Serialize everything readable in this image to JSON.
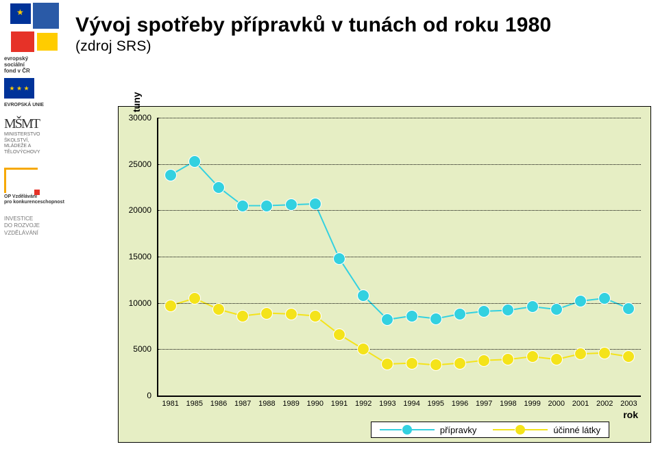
{
  "heading": {
    "title": "Vývoj spotřeby přípravků v tunách od roku 1980",
    "subtitle": "(zdroj SRS)"
  },
  "sidebar": {
    "esf_line1": "evropský",
    "esf_line2": "sociální",
    "esf_line3": "fond v ČR",
    "eu_caption": "EVROPSKÁ UNIE",
    "msmt_logo": "MŠMT",
    "msmt_line1": "MINISTERSTVO ŠKOLSTVÍ,",
    "msmt_line2": "MLÁDEŽE A TĚLOVÝCHOVY",
    "op_line1": "OP Vzdělávání",
    "op_line2": "pro konkurenceschopnost",
    "invest_line1": "INVESTICE",
    "invest_line2": "DO ROZVOJE",
    "invest_line3": "VZDĚLÁVÁNÍ"
  },
  "chart": {
    "type": "line",
    "background_color": "#e6eec4",
    "plot_border_color": "#000000",
    "grid_color": "#000000",
    "grid_style": "dotted",
    "ylabel": "tuny",
    "xlabel": "rok",
    "label_fontsize": 14,
    "tick_fontsize": 12,
    "xtick_fontsize": 11,
    "ylim": [
      0,
      30000
    ],
    "yticks": [
      0,
      5000,
      10000,
      15000,
      20000,
      25000,
      30000
    ],
    "xcategories": [
      "1981",
      "1985",
      "1986",
      "1987",
      "1988",
      "1989",
      "1990",
      "1991",
      "1992",
      "1993",
      "1994",
      "1995",
      "1996",
      "1997",
      "1998",
      "1999",
      "2000",
      "2001",
      "2002",
      "2003"
    ],
    "marker_size": 16,
    "marker_outline": "#ffffff",
    "marker_outline_width": 1.2,
    "line_width": 2,
    "series": [
      {
        "name": "přípravky",
        "color": "#33d1e0",
        "values": [
          23800,
          25300,
          22500,
          20500,
          20500,
          20600,
          20700,
          14800,
          10800,
          8200,
          8600,
          8300,
          8800,
          9100,
          9200,
          9600,
          9300,
          10200,
          10500,
          9400
        ]
      },
      {
        "name": "účinné látky",
        "color": "#f4e31a",
        "values": [
          9700,
          10500,
          9300,
          8600,
          8900,
          8800,
          8600,
          6600,
          5000,
          3400,
          3500,
          3300,
          3500,
          3800,
          3900,
          4200,
          3900,
          4500,
          4600,
          4200
        ]
      }
    ],
    "legend": {
      "position": "bottom-right",
      "background": "#ffffff",
      "border": "#000000"
    }
  }
}
